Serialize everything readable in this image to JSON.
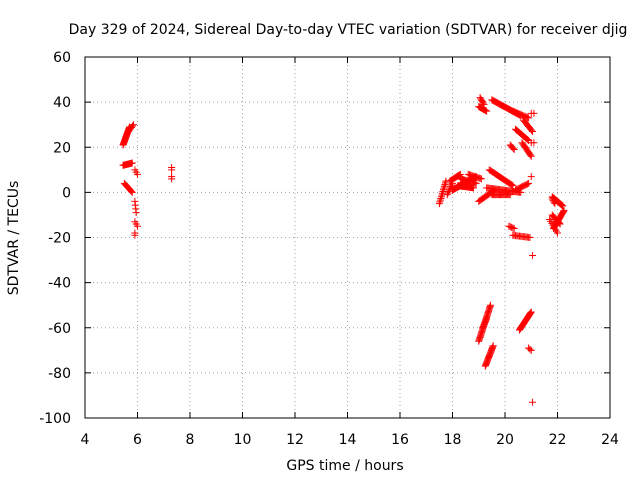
{
  "chart_data": {
    "type": "scatter",
    "title": "Day 329 of 2024, Sidereal Day-to-day VTEC variation (SDTVAR) for receiver djig",
    "xlabel": "GPS time / hours",
    "ylabel": "SDTVAR / TECUs",
    "xlim": [
      4,
      24
    ],
    "ylim": [
      -100,
      60
    ],
    "xticks": [
      4,
      6,
      8,
      10,
      12,
      14,
      16,
      18,
      20,
      22,
      24
    ],
    "yticks": [
      -100,
      -80,
      -60,
      -40,
      -20,
      0,
      20,
      40,
      60
    ],
    "grid": true,
    "marker_color": "#ff0000",
    "marker": "plus",
    "segments": [
      {
        "x0": 5.45,
        "y0": 21,
        "x1": 5.7,
        "y1": 29,
        "n": 24
      },
      {
        "x0": 5.65,
        "y0": 27,
        "x1": 5.85,
        "y1": 30,
        "n": 6
      },
      {
        "x0": 5.45,
        "y0": 12,
        "x1": 5.8,
        "y1": 13,
        "n": 12
      },
      {
        "x0": 5.5,
        "y0": 4,
        "x1": 5.8,
        "y1": 0,
        "n": 10
      },
      {
        "x0": 5.9,
        "y0": 10,
        "x1": 6.0,
        "y1": 8,
        "n": 3
      },
      {
        "x0": 5.9,
        "y0": -4,
        "x1": 5.95,
        "y1": -9,
        "n": 4
      },
      {
        "x0": 5.9,
        "y0": -13,
        "x1": 6.0,
        "y1": -15,
        "n": 3
      },
      {
        "x0": 5.9,
        "y0": -18,
        "x1": 5.9,
        "y1": -19,
        "n": 2
      },
      {
        "x0": 7.3,
        "y0": 10,
        "x1": 7.3,
        "y1": 11,
        "n": 2
      },
      {
        "x0": 7.3,
        "y0": 6,
        "x1": 7.3,
        "y1": 7,
        "n": 2
      },
      {
        "x0": 17.5,
        "y0": -5,
        "x1": 17.75,
        "y1": 5,
        "n": 14
      },
      {
        "x0": 17.8,
        "y0": -1,
        "x1": 18.0,
        "y1": 4,
        "n": 8
      },
      {
        "x0": 17.9,
        "y0": 5,
        "x1": 18.3,
        "y1": 8,
        "n": 12
      },
      {
        "x0": 18.0,
        "y0": 1,
        "x1": 18.9,
        "y1": 7,
        "n": 32
      },
      {
        "x0": 18.2,
        "y0": 3,
        "x1": 18.8,
        "y1": 2,
        "n": 20
      },
      {
        "x0": 18.3,
        "y0": 6,
        "x1": 18.9,
        "y1": 4,
        "n": 16
      },
      {
        "x0": 18.6,
        "y0": 8,
        "x1": 19.1,
        "y1": 6,
        "n": 12
      },
      {
        "x0": 19.0,
        "y0": -4,
        "x1": 19.6,
        "y1": 1,
        "n": 16
      },
      {
        "x0": 19.3,
        "y0": 2,
        "x1": 20.6,
        "y1": 0,
        "n": 30
      },
      {
        "x0": 19.5,
        "y0": -1,
        "x1": 20.2,
        "y1": -1,
        "n": 18
      },
      {
        "x0": 19.4,
        "y0": 10,
        "x1": 20.3,
        "y1": 3,
        "n": 24
      },
      {
        "x0": 20.4,
        "y0": 1,
        "x1": 20.9,
        "y1": 4,
        "n": 12
      },
      {
        "x0": 19.0,
        "y0": 38,
        "x1": 19.3,
        "y1": 36,
        "n": 10
      },
      {
        "x0": 19.05,
        "y0": 42,
        "x1": 19.2,
        "y1": 39,
        "n": 6
      },
      {
        "x0": 19.5,
        "y0": 41,
        "x1": 20.6,
        "y1": 34,
        "n": 32
      },
      {
        "x0": 20.3,
        "y0": 36,
        "x1": 20.9,
        "y1": 33,
        "n": 14
      },
      {
        "x0": 20.7,
        "y0": 32,
        "x1": 21.05,
        "y1": 27,
        "n": 10
      },
      {
        "x0": 20.4,
        "y0": 28,
        "x1": 20.9,
        "y1": 23,
        "n": 14
      },
      {
        "x0": 20.65,
        "y0": 22,
        "x1": 21.0,
        "y1": 16,
        "n": 12
      },
      {
        "x0": 20.2,
        "y0": 21,
        "x1": 20.35,
        "y1": 19,
        "n": 5
      },
      {
        "x0": 21.0,
        "y0": 22,
        "x1": 21.1,
        "y1": 22,
        "n": 2
      },
      {
        "x0": 21.0,
        "y0": 35,
        "x1": 21.1,
        "y1": 35,
        "n": 2
      },
      {
        "x0": 21.0,
        "y0": 7,
        "x1": 21.0,
        "y1": 7,
        "n": 1
      },
      {
        "x0": 20.15,
        "y0": -15,
        "x1": 20.35,
        "y1": -16,
        "n": 5
      },
      {
        "x0": 20.3,
        "y0": -19,
        "x1": 20.95,
        "y1": -20,
        "n": 14
      },
      {
        "x0": 21.05,
        "y0": -28,
        "x1": 21.05,
        "y1": -29,
        "n": 1
      },
      {
        "x0": 21.8,
        "y0": -2,
        "x1": 22.2,
        "y1": -6,
        "n": 16
      },
      {
        "x0": 21.85,
        "y0": -16,
        "x1": 22.25,
        "y1": -8,
        "n": 20
      },
      {
        "x0": 21.8,
        "y0": -10,
        "x1": 22.1,
        "y1": -14,
        "n": 10
      },
      {
        "x0": 21.7,
        "y0": -12,
        "x1": 22.0,
        "y1": -18,
        "n": 8
      },
      {
        "x0": 21.8,
        "y0": -3,
        "x1": 21.9,
        "y1": -5,
        "n": 4
      },
      {
        "x0": 19.0,
        "y0": -66,
        "x1": 19.45,
        "y1": -50,
        "n": 30
      },
      {
        "x0": 19.15,
        "y0": -60,
        "x1": 19.3,
        "y1": -56,
        "n": 8
      },
      {
        "x0": 19.25,
        "y0": -77,
        "x1": 19.55,
        "y1": -68,
        "n": 20
      },
      {
        "x0": 20.55,
        "y0": -61,
        "x1": 21.0,
        "y1": -53,
        "n": 24
      },
      {
        "x0": 20.9,
        "y0": -69,
        "x1": 21.0,
        "y1": -70,
        "n": 3
      },
      {
        "x0": 21.05,
        "y0": -93,
        "x1": 21.05,
        "y1": -93,
        "n": 1
      }
    ]
  }
}
